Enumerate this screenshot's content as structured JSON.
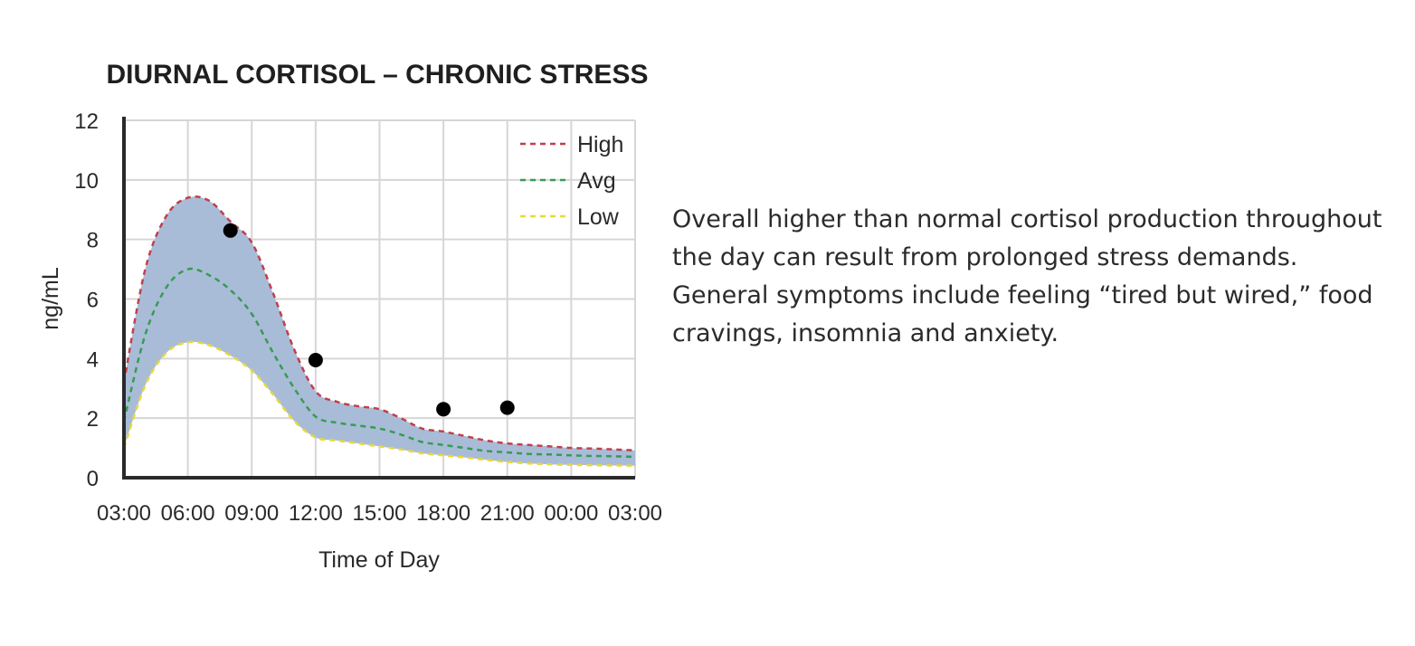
{
  "chart_data": {
    "type": "area",
    "title": "DIURNAL CORTISOL – CHRONIC STRESS",
    "xlabel": "Time of Day",
    "ylabel": "ng/mL",
    "x_tick_labels": [
      "03:00",
      "06:00",
      "09:00",
      "12:00",
      "15:00",
      "18:00",
      "21:00",
      "00:00",
      "03:00"
    ],
    "y_ticks": [
      0,
      2,
      4,
      6,
      8,
      10,
      12
    ],
    "ylim": [
      0,
      12
    ],
    "x_hours_since_start_range": [
      0,
      24
    ],
    "grid": true,
    "legend_position": "top-right",
    "band_fill_color": "#a8bcd8",
    "series": [
      {
        "name": "High",
        "color": "#c0404a",
        "style": "dashed",
        "x": [
          0,
          1,
          2,
          3,
          4,
          5,
          6,
          7,
          8,
          9,
          10,
          11,
          12,
          13,
          14,
          15,
          16,
          17,
          18,
          19,
          20,
          21,
          22,
          23,
          24
        ],
        "values": [
          3.2,
          7.0,
          8.8,
          9.4,
          9.3,
          8.6,
          7.9,
          6.2,
          4.3,
          2.9,
          2.55,
          2.4,
          2.3,
          2.0,
          1.65,
          1.55,
          1.4,
          1.25,
          1.15,
          1.1,
          1.05,
          1.0,
          0.98,
          0.95,
          0.92
        ]
      },
      {
        "name": "Avg",
        "color": "#3a9a52",
        "style": "dashed",
        "x": [
          0,
          1,
          2,
          3,
          4,
          5,
          6,
          7,
          8,
          9,
          10,
          11,
          12,
          13,
          14,
          15,
          16,
          17,
          18,
          19,
          20,
          21,
          22,
          23,
          24
        ],
        "values": [
          1.9,
          4.8,
          6.4,
          7.0,
          6.8,
          6.3,
          5.5,
          4.2,
          3.0,
          2.05,
          1.85,
          1.75,
          1.65,
          1.45,
          1.2,
          1.1,
          1.0,
          0.9,
          0.85,
          0.8,
          0.78,
          0.75,
          0.73,
          0.72,
          0.7
        ]
      },
      {
        "name": "Low",
        "color": "#e8d83a",
        "style": "dashed",
        "x": [
          0,
          1,
          2,
          3,
          4,
          5,
          6,
          7,
          8,
          9,
          10,
          11,
          12,
          13,
          14,
          15,
          16,
          17,
          18,
          19,
          20,
          21,
          22,
          23,
          24
        ],
        "values": [
          1.0,
          3.1,
          4.2,
          4.55,
          4.45,
          4.1,
          3.6,
          2.8,
          1.9,
          1.35,
          1.25,
          1.15,
          1.05,
          0.95,
          0.82,
          0.75,
          0.68,
          0.6,
          0.53,
          0.48,
          0.45,
          0.43,
          0.42,
          0.41,
          0.4
        ]
      }
    ],
    "points": {
      "color": "#000000",
      "x": [
        5,
        9,
        15,
        18
      ],
      "values": [
        8.3,
        3.95,
        2.3,
        2.35
      ]
    }
  },
  "description": "Overall higher than normal cortisol production throughout the day can result from prolonged stress demands. General symptoms include feeling “tired but wired,” food cravings, insomnia and anxiety."
}
